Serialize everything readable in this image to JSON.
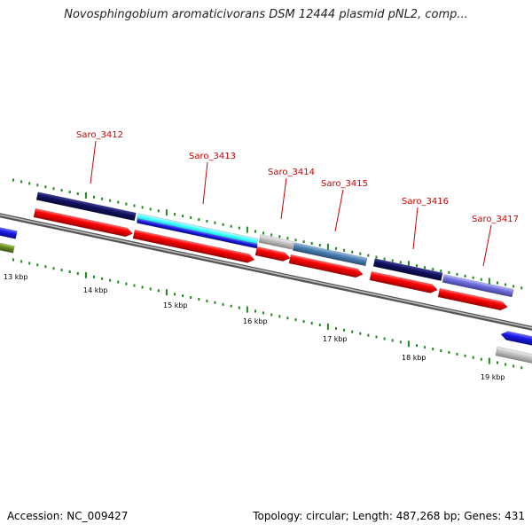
{
  "title": "Novosphingobium aromaticivorans DSM 12444 plasmid pNL2, comp...",
  "footer": {
    "accession_label": "Accession:",
    "accession": "NC_009427",
    "topology_label": "Topology:",
    "topology": "circular",
    "length_label": "Length:",
    "length": "487,268 bp",
    "genes_label": "Genes:",
    "genes": "431"
  },
  "gene_labels": [
    "Saro_3412",
    "Saro_3413",
    "Saro_3414",
    "Saro_3415",
    "Saro_3416",
    "Saro_3417"
  ],
  "scale_labels": [
    "13 kbp",
    "14 kbp",
    "15 kbp",
    "16 kbp",
    "17 kbp",
    "18 kbp",
    "19 kbp"
  ],
  "colors": {
    "backbone": "#8c8c8c",
    "cds": "#ff0000",
    "tick": "#1a8a1a",
    "label": "#cc0000",
    "navy": "#1a1a70",
    "cyan": "#33ffff",
    "blue": "#1a1ae6",
    "grey": "#bdbdbd",
    "steel": "#4d80b3",
    "periwinkle": "#7070dd",
    "olive": "#6b8e23"
  }
}
